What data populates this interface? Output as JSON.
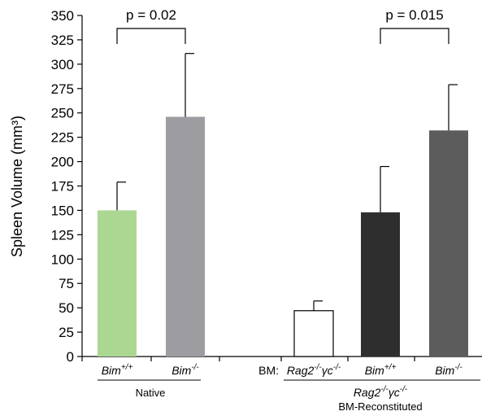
{
  "chart_data": {
    "type": "bar",
    "ylabel": "Spleen Volume (mm³)",
    "ylim": [
      0,
      350
    ],
    "y_ticks": [
      0,
      25,
      50,
      75,
      100,
      125,
      150,
      175,
      200,
      225,
      250,
      275,
      300,
      325,
      350
    ],
    "grid": false,
    "bars": [
      {
        "label_base": "Bim",
        "label_sup": "+/+",
        "value": 150,
        "error": 29,
        "color": "#acd793"
      },
      {
        "label_base": "Bim",
        "label_sup": "-/-",
        "value": 246,
        "error": 65,
        "color": "#9d9ca1"
      },
      {
        "label_base": "Rag2",
        "label_sup": "-/-",
        "label_base2": "γc",
        "label_sup2": "-/-",
        "value": 47,
        "error": 10,
        "color": "#ffffff"
      },
      {
        "label_base": "Bim",
        "label_sup": "+/+",
        "value": 148,
        "error": 47,
        "color": "#2e2e2e"
      },
      {
        "label_base": "Bim",
        "label_sup": "-/-",
        "value": 232,
        "error": 47,
        "color": "#5c5c5c"
      }
    ],
    "comparisons": [
      {
        "label": "p = 0.02",
        "bars": [
          0,
          1
        ]
      },
      {
        "label": "p = 0.015",
        "bars": [
          3,
          4
        ]
      }
    ],
    "bm_prefix": "BM:",
    "groups": [
      {
        "label": "Native",
        "bars": [
          0,
          1
        ]
      },
      {
        "label_base": "Rag2",
        "label_sup": "-/-",
        "label_base2": "γc",
        "label_sup2": "-/-",
        "label_line2": "BM-Reconstituted",
        "bars": [
          2,
          4
        ]
      }
    ]
  }
}
